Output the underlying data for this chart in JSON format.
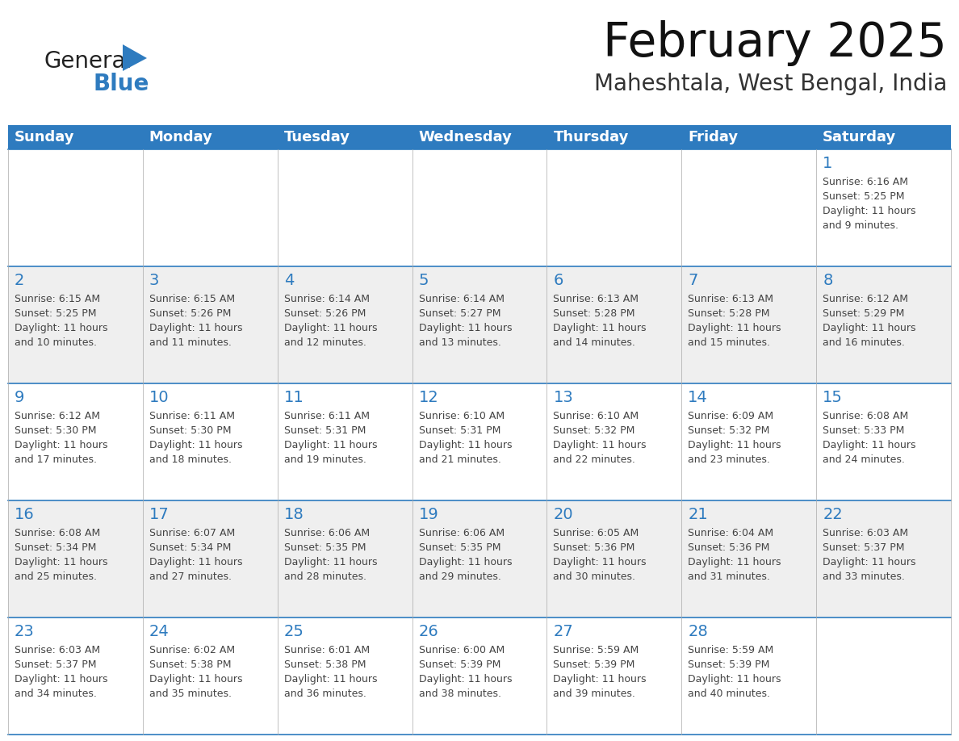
{
  "title": "February 2025",
  "subtitle": "Maheshtala, West Bengal, India",
  "header_bg": "#2E7BBF",
  "header_text_color": "#FFFFFF",
  "cell_line_color": "#2E7BBF",
  "day_number_color": "#2E7BBF",
  "cell_text_color": "#444444",
  "bg_color": "#FFFFFF",
  "alt_row_bg": "#EFEFEF",
  "days_of_week": [
    "Sunday",
    "Monday",
    "Tuesday",
    "Wednesday",
    "Thursday",
    "Friday",
    "Saturday"
  ],
  "logo_general_color": "#222222",
  "logo_blue_color": "#2E7BBF",
  "logo_triangle_color": "#2E7BBF",
  "calendar_data": [
    [
      null,
      null,
      null,
      null,
      null,
      null,
      {
        "day": 1,
        "sunrise": "6:16 AM",
        "sunset": "5:25 PM",
        "daylight": "11 hours\nand 9 minutes."
      }
    ],
    [
      {
        "day": 2,
        "sunrise": "6:15 AM",
        "sunset": "5:25 PM",
        "daylight": "11 hours\nand 10 minutes."
      },
      {
        "day": 3,
        "sunrise": "6:15 AM",
        "sunset": "5:26 PM",
        "daylight": "11 hours\nand 11 minutes."
      },
      {
        "day": 4,
        "sunrise": "6:14 AM",
        "sunset": "5:26 PM",
        "daylight": "11 hours\nand 12 minutes."
      },
      {
        "day": 5,
        "sunrise": "6:14 AM",
        "sunset": "5:27 PM",
        "daylight": "11 hours\nand 13 minutes."
      },
      {
        "day": 6,
        "sunrise": "6:13 AM",
        "sunset": "5:28 PM",
        "daylight": "11 hours\nand 14 minutes."
      },
      {
        "day": 7,
        "sunrise": "6:13 AM",
        "sunset": "5:28 PM",
        "daylight": "11 hours\nand 15 minutes."
      },
      {
        "day": 8,
        "sunrise": "6:12 AM",
        "sunset": "5:29 PM",
        "daylight": "11 hours\nand 16 minutes."
      }
    ],
    [
      {
        "day": 9,
        "sunrise": "6:12 AM",
        "sunset": "5:30 PM",
        "daylight": "11 hours\nand 17 minutes."
      },
      {
        "day": 10,
        "sunrise": "6:11 AM",
        "sunset": "5:30 PM",
        "daylight": "11 hours\nand 18 minutes."
      },
      {
        "day": 11,
        "sunrise": "6:11 AM",
        "sunset": "5:31 PM",
        "daylight": "11 hours\nand 19 minutes."
      },
      {
        "day": 12,
        "sunrise": "6:10 AM",
        "sunset": "5:31 PM",
        "daylight": "11 hours\nand 21 minutes."
      },
      {
        "day": 13,
        "sunrise": "6:10 AM",
        "sunset": "5:32 PM",
        "daylight": "11 hours\nand 22 minutes."
      },
      {
        "day": 14,
        "sunrise": "6:09 AM",
        "sunset": "5:32 PM",
        "daylight": "11 hours\nand 23 minutes."
      },
      {
        "day": 15,
        "sunrise": "6:08 AM",
        "sunset": "5:33 PM",
        "daylight": "11 hours\nand 24 minutes."
      }
    ],
    [
      {
        "day": 16,
        "sunrise": "6:08 AM",
        "sunset": "5:34 PM",
        "daylight": "11 hours\nand 25 minutes."
      },
      {
        "day": 17,
        "sunrise": "6:07 AM",
        "sunset": "5:34 PM",
        "daylight": "11 hours\nand 27 minutes."
      },
      {
        "day": 18,
        "sunrise": "6:06 AM",
        "sunset": "5:35 PM",
        "daylight": "11 hours\nand 28 minutes."
      },
      {
        "day": 19,
        "sunrise": "6:06 AM",
        "sunset": "5:35 PM",
        "daylight": "11 hours\nand 29 minutes."
      },
      {
        "day": 20,
        "sunrise": "6:05 AM",
        "sunset": "5:36 PM",
        "daylight": "11 hours\nand 30 minutes."
      },
      {
        "day": 21,
        "sunrise": "6:04 AM",
        "sunset": "5:36 PM",
        "daylight": "11 hours\nand 31 minutes."
      },
      {
        "day": 22,
        "sunrise": "6:03 AM",
        "sunset": "5:37 PM",
        "daylight": "11 hours\nand 33 minutes."
      }
    ],
    [
      {
        "day": 23,
        "sunrise": "6:03 AM",
        "sunset": "5:37 PM",
        "daylight": "11 hours\nand 34 minutes."
      },
      {
        "day": 24,
        "sunrise": "6:02 AM",
        "sunset": "5:38 PM",
        "daylight": "11 hours\nand 35 minutes."
      },
      {
        "day": 25,
        "sunrise": "6:01 AM",
        "sunset": "5:38 PM",
        "daylight": "11 hours\nand 36 minutes."
      },
      {
        "day": 26,
        "sunrise": "6:00 AM",
        "sunset": "5:39 PM",
        "daylight": "11 hours\nand 38 minutes."
      },
      {
        "day": 27,
        "sunrise": "5:59 AM",
        "sunset": "5:39 PM",
        "daylight": "11 hours\nand 39 minutes."
      },
      {
        "day": 28,
        "sunrise": "5:59 AM",
        "sunset": "5:39 PM",
        "daylight": "11 hours\nand 40 minutes."
      },
      null
    ]
  ]
}
